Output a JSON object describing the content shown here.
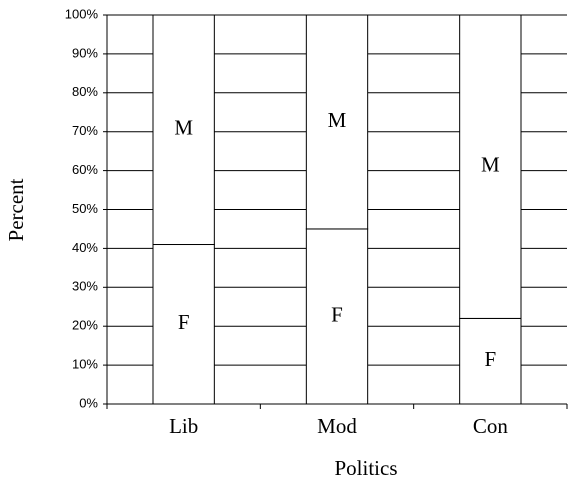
{
  "chart_data": {
    "type": "stacked_bar",
    "x_label": "Politics",
    "y_label": "Percent",
    "categories": [
      "Lib",
      "Mod",
      "Con"
    ],
    "series": [
      {
        "name": "F",
        "color": "#ffffff",
        "values": [
          41,
          45,
          22
        ]
      },
      {
        "name": "M",
        "color": "#ffffff",
        "values": [
          59,
          55,
          78
        ]
      }
    ],
    "ylim": [
      0,
      100
    ],
    "yticks": [
      {
        "value": 0,
        "label": "0%"
      },
      {
        "value": 10,
        "label": "10%"
      },
      {
        "value": 20,
        "label": "20%"
      },
      {
        "value": 30,
        "label": "30%"
      },
      {
        "value": 40,
        "label": "40%"
      },
      {
        "value": 50,
        "label": "50%"
      },
      {
        "value": 60,
        "label": "60%"
      },
      {
        "value": 70,
        "label": "70%"
      },
      {
        "value": 80,
        "label": "80%"
      },
      {
        "value": 90,
        "label": "90%"
      },
      {
        "value": 100,
        "label": "100%"
      }
    ],
    "grid": true
  }
}
